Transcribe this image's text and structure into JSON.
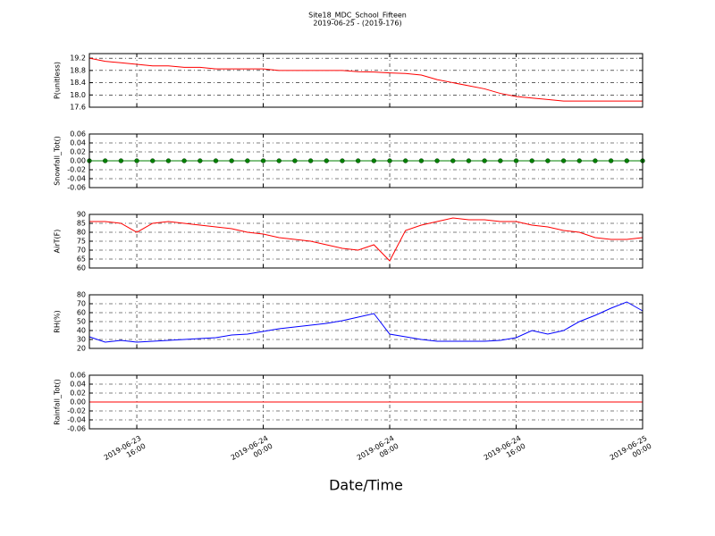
{
  "title": "Site18_MDC_School_Fifteen",
  "subtitle": "2019-06-25 - (2019-176)",
  "chart_data": [
    {
      "type": "line",
      "ylabel": "P(unitless)",
      "color": "#ff0000",
      "grid": true,
      "x": [
        "2019-06-23 13:00",
        "2019-06-23 14:00",
        "2019-06-23 15:00",
        "2019-06-23 16:00",
        "2019-06-23 17:00",
        "2019-06-23 18:00",
        "2019-06-23 19:00",
        "2019-06-23 20:00",
        "2019-06-23 21:00",
        "2019-06-23 22:00",
        "2019-06-23 23:00",
        "2019-06-24 00:00",
        "2019-06-24 01:00",
        "2019-06-24 02:00",
        "2019-06-24 03:00",
        "2019-06-24 04:00",
        "2019-06-24 05:00",
        "2019-06-24 06:00",
        "2019-06-24 07:00",
        "2019-06-24 08:00",
        "2019-06-24 09:00",
        "2019-06-24 10:00",
        "2019-06-24 11:00",
        "2019-06-24 12:00",
        "2019-06-24 13:00",
        "2019-06-24 14:00",
        "2019-06-24 15:00",
        "2019-06-24 16:00",
        "2019-06-24 17:00",
        "2019-06-24 18:00",
        "2019-06-24 19:00",
        "2019-06-24 20:00",
        "2019-06-24 21:00",
        "2019-06-24 22:00",
        "2019-06-24 23:00",
        "2019-06-25 00:00"
      ],
      "values": [
        19.2,
        19.1,
        19.05,
        19.0,
        18.95,
        18.95,
        18.9,
        18.9,
        18.85,
        18.85,
        18.85,
        18.85,
        18.8,
        18.8,
        18.8,
        18.8,
        18.8,
        18.76,
        18.75,
        18.72,
        18.7,
        18.65,
        18.5,
        18.4,
        18.3,
        18.2,
        18.05,
        17.95,
        17.9,
        17.85,
        17.8,
        17.8,
        17.8,
        17.8,
        17.8,
        17.8
      ],
      "xlim": [
        "2019-06-23 13:00",
        "2019-06-25 00:00"
      ],
      "xticks": [
        "2019-06-23 16:00",
        "2019-06-24 00:00",
        "2019-06-24 08:00",
        "2019-06-24 16:00",
        "2019-06-25 00:00"
      ],
      "ylim": [
        17.6,
        19.35
      ],
      "yticks": [
        19.2,
        18.8,
        18.4,
        {
          "value": 18,
          "label": "18.0"
        },
        17.6
      ]
    },
    {
      "type": "line",
      "ylabel": "Snowfall_Tot()",
      "color": "#008000",
      "marker": "o",
      "grid": true,
      "x": [
        "2019-06-23 13:00",
        "2019-06-23 14:00",
        "2019-06-23 15:00",
        "2019-06-23 16:00",
        "2019-06-23 17:00",
        "2019-06-23 18:00",
        "2019-06-23 19:00",
        "2019-06-23 20:00",
        "2019-06-23 21:00",
        "2019-06-23 22:00",
        "2019-06-23 23:00",
        "2019-06-24 00:00",
        "2019-06-24 01:00",
        "2019-06-24 02:00",
        "2019-06-24 03:00",
        "2019-06-24 04:00",
        "2019-06-24 05:00",
        "2019-06-24 06:00",
        "2019-06-24 07:00",
        "2019-06-24 08:00",
        "2019-06-24 09:00",
        "2019-06-24 10:00",
        "2019-06-24 11:00",
        "2019-06-24 12:00",
        "2019-06-24 13:00",
        "2019-06-24 14:00",
        "2019-06-24 15:00",
        "2019-06-24 16:00",
        "2019-06-24 17:00",
        "2019-06-24 18:00",
        "2019-06-24 19:00",
        "2019-06-24 20:00",
        "2019-06-24 21:00",
        "2019-06-24 22:00",
        "2019-06-24 23:00",
        "2019-06-25 00:00"
      ],
      "values": [
        0,
        0,
        0,
        0,
        0,
        0,
        0,
        0,
        0,
        0,
        0,
        0,
        0,
        0,
        0,
        0,
        0,
        0,
        0,
        0,
        0,
        0,
        0,
        0,
        0,
        0,
        0,
        0,
        0,
        0,
        0,
        0,
        0,
        0,
        0,
        0
      ],
      "xlim": [
        "2019-06-23 13:00",
        "2019-06-25 00:00"
      ],
      "xticks": [
        "2019-06-23 16:00",
        "2019-06-24 00:00",
        "2019-06-24 08:00",
        "2019-06-24 16:00",
        "2019-06-25 00:00"
      ],
      "ylim": [
        -0.06,
        0.06
      ],
      "yticks": [
        0.06,
        0.04,
        0.02,
        {
          "value": 0,
          "label": "0.00"
        },
        -0.02,
        -0.04,
        -0.06
      ]
    },
    {
      "type": "line",
      "ylabel": "AirT(F)",
      "color": "#ff0000",
      "grid": true,
      "x": [
        "2019-06-23 13:00",
        "2019-06-23 14:00",
        "2019-06-23 15:00",
        "2019-06-23 16:00",
        "2019-06-23 17:00",
        "2019-06-23 18:00",
        "2019-06-23 19:00",
        "2019-06-23 20:00",
        "2019-06-23 21:00",
        "2019-06-23 22:00",
        "2019-06-23 23:00",
        "2019-06-24 00:00",
        "2019-06-24 01:00",
        "2019-06-24 02:00",
        "2019-06-24 03:00",
        "2019-06-24 04:00",
        "2019-06-24 05:00",
        "2019-06-24 06:00",
        "2019-06-24 07:00",
        "2019-06-24 08:00",
        "2019-06-24 09:00",
        "2019-06-24 10:00",
        "2019-06-24 11:00",
        "2019-06-24 12:00",
        "2019-06-24 13:00",
        "2019-06-24 14:00",
        "2019-06-24 15:00",
        "2019-06-24 16:00",
        "2019-06-24 17:00",
        "2019-06-24 18:00",
        "2019-06-24 19:00",
        "2019-06-24 20:00",
        "2019-06-24 21:00",
        "2019-06-24 22:00",
        "2019-06-24 23:00",
        "2019-06-25 00:00"
      ],
      "values": [
        86,
        86,
        85,
        80,
        85,
        86,
        85,
        84,
        83,
        82,
        80,
        79,
        77,
        76,
        75,
        73,
        71,
        70,
        73,
        64,
        81,
        84,
        86,
        88,
        87,
        87,
        86,
        86,
        84,
        83,
        81,
        80,
        77,
        76,
        76,
        77
      ],
      "xlim": [
        "2019-06-23 13:00",
        "2019-06-25 00:00"
      ],
      "xticks": [
        "2019-06-23 16:00",
        "2019-06-24 00:00",
        "2019-06-24 08:00",
        "2019-06-24 16:00",
        "2019-06-25 00:00"
      ],
      "ylim": [
        60,
        90
      ],
      "yticks": [
        90,
        85,
        80,
        75,
        70,
        65,
        60
      ]
    },
    {
      "type": "line",
      "ylabel": "RH(%)",
      "color": "#0000ff",
      "grid": true,
      "x": [
        "2019-06-23 13:00",
        "2019-06-23 14:00",
        "2019-06-23 15:00",
        "2019-06-23 16:00",
        "2019-06-23 17:00",
        "2019-06-23 18:00",
        "2019-06-23 19:00",
        "2019-06-23 20:00",
        "2019-06-23 21:00",
        "2019-06-23 22:00",
        "2019-06-23 23:00",
        "2019-06-24 00:00",
        "2019-06-24 01:00",
        "2019-06-24 02:00",
        "2019-06-24 03:00",
        "2019-06-24 04:00",
        "2019-06-24 05:00",
        "2019-06-24 06:00",
        "2019-06-24 07:00",
        "2019-06-24 08:00",
        "2019-06-24 09:00",
        "2019-06-24 10:00",
        "2019-06-24 11:00",
        "2019-06-24 12:00",
        "2019-06-24 13:00",
        "2019-06-24 14:00",
        "2019-06-24 15:00",
        "2019-06-24 16:00",
        "2019-06-24 17:00",
        "2019-06-24 18:00",
        "2019-06-24 19:00",
        "2019-06-24 20:00",
        "2019-06-24 21:00",
        "2019-06-24 22:00",
        "2019-06-24 23:00",
        "2019-06-25 00:00"
      ],
      "values": [
        33,
        27,
        29,
        27,
        28,
        29,
        30,
        31,
        32,
        35,
        36,
        39,
        42,
        44,
        46,
        48,
        51,
        55,
        59,
        36,
        33,
        30,
        28,
        28,
        28,
        28,
        29,
        32,
        40,
        36,
        40,
        50,
        57,
        65,
        72,
        62
      ],
      "xlim": [
        "2019-06-23 13:00",
        "2019-06-25 00:00"
      ],
      "xticks": [
        "2019-06-23 16:00",
        "2019-06-24 00:00",
        "2019-06-24 08:00",
        "2019-06-24 16:00",
        "2019-06-25 00:00"
      ],
      "ylim": [
        20,
        80
      ],
      "yticks": [
        80,
        70,
        60,
        50,
        40,
        30,
        20
      ]
    },
    {
      "type": "line",
      "ylabel": "Rainfall_Tot()",
      "xlabel": "Date/Time",
      "color": "#ff0000",
      "grid": true,
      "x": [
        "2019-06-23 13:00",
        "2019-06-23 14:00",
        "2019-06-23 15:00",
        "2019-06-23 16:00",
        "2019-06-23 17:00",
        "2019-06-23 18:00",
        "2019-06-23 19:00",
        "2019-06-23 20:00",
        "2019-06-23 21:00",
        "2019-06-23 22:00",
        "2019-06-23 23:00",
        "2019-06-24 00:00",
        "2019-06-24 01:00",
        "2019-06-24 02:00",
        "2019-06-24 03:00",
        "2019-06-24 04:00",
        "2019-06-24 05:00",
        "2019-06-24 06:00",
        "2019-06-24 07:00",
        "2019-06-24 08:00",
        "2019-06-24 09:00",
        "2019-06-24 10:00",
        "2019-06-24 11:00",
        "2019-06-24 12:00",
        "2019-06-24 13:00",
        "2019-06-24 14:00",
        "2019-06-24 15:00",
        "2019-06-24 16:00",
        "2019-06-24 17:00",
        "2019-06-24 18:00",
        "2019-06-24 19:00",
        "2019-06-24 20:00",
        "2019-06-24 21:00",
        "2019-06-24 22:00",
        "2019-06-24 23:00",
        "2019-06-25 00:00"
      ],
      "values": [
        0,
        0,
        0,
        0,
        0,
        0,
        0,
        0,
        0,
        0,
        0,
        0,
        0,
        0,
        0,
        0,
        0,
        0,
        0,
        0,
        0,
        0,
        0,
        0,
        0,
        0,
        0,
        0,
        0,
        0,
        0,
        0,
        0,
        0,
        0,
        0
      ],
      "xlim": [
        "2019-06-23 13:00",
        "2019-06-25 00:00"
      ],
      "xticks": [
        "2019-06-23 16:00",
        "2019-06-24 00:00",
        "2019-06-24 08:00",
        "2019-06-24 16:00",
        "2019-06-25 00:00"
      ],
      "ylim": [
        -0.06,
        0.06
      ],
      "yticks": [
        0.06,
        0.04,
        0.02,
        {
          "value": 0,
          "label": "0.00"
        },
        -0.02,
        -0.04,
        -0.06
      ]
    }
  ]
}
